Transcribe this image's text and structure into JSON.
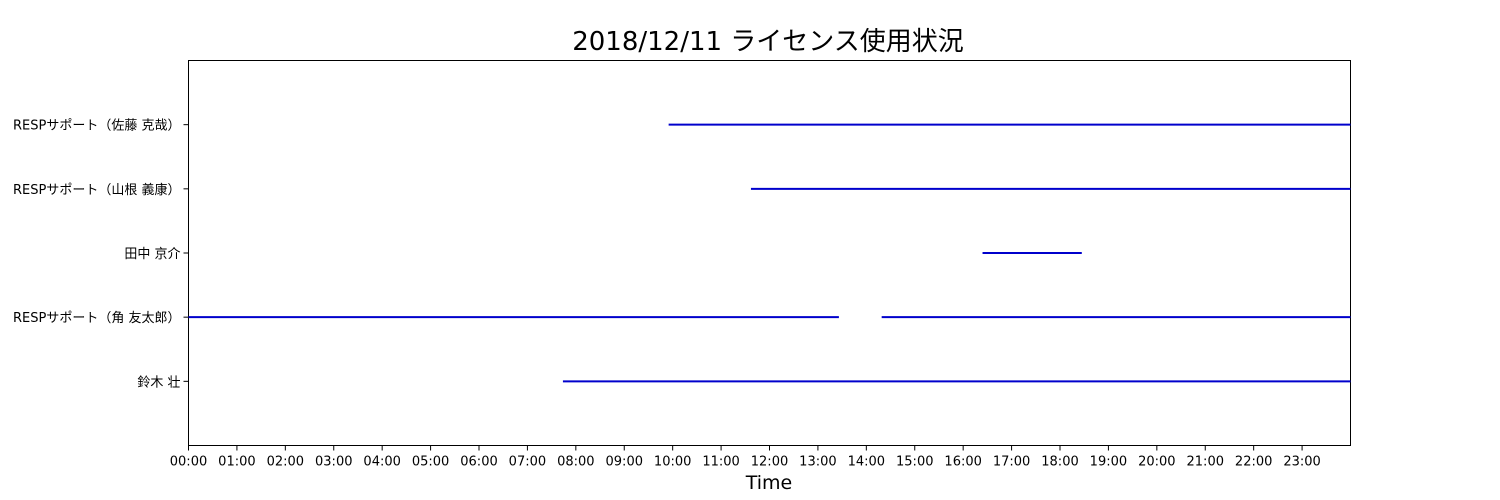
{
  "chart_data": {
    "type": "timeline",
    "title": "2018/12/11 ライセンス使用状況",
    "xlabel": "Time",
    "ylabel": "",
    "x_range_hours": [
      0,
      24
    ],
    "x_ticks": [
      "00:00",
      "01:00",
      "02:00",
      "03:00",
      "04:00",
      "05:00",
      "06:00",
      "07:00",
      "08:00",
      "09:00",
      "10:00",
      "11:00",
      "12:00",
      "13:00",
      "14:00",
      "15:00",
      "16:00",
      "17:00",
      "18:00",
      "19:00",
      "20:00",
      "21:00",
      "22:00",
      "23:00"
    ],
    "grid": false,
    "series_color": "#0000cc",
    "rows": [
      {
        "label": "RESPサポート（佐藤 克哉）",
        "intervals": [
          [
            "09:55",
            "24:00"
          ]
        ]
      },
      {
        "label": "RESPサポート（山根 義康）",
        "intervals": [
          [
            "11:37",
            "24:00"
          ]
        ]
      },
      {
        "label": "田中 京介",
        "intervals": [
          [
            "16:24",
            "18:27"
          ]
        ]
      },
      {
        "label": "RESPサポート（角 友太郎）",
        "intervals": [
          [
            "00:00",
            "13:26"
          ],
          [
            "14:19",
            "24:00"
          ]
        ]
      },
      {
        "label": "鈴木 壮",
        "intervals": [
          [
            "07:44",
            "24:00"
          ]
        ]
      }
    ]
  }
}
